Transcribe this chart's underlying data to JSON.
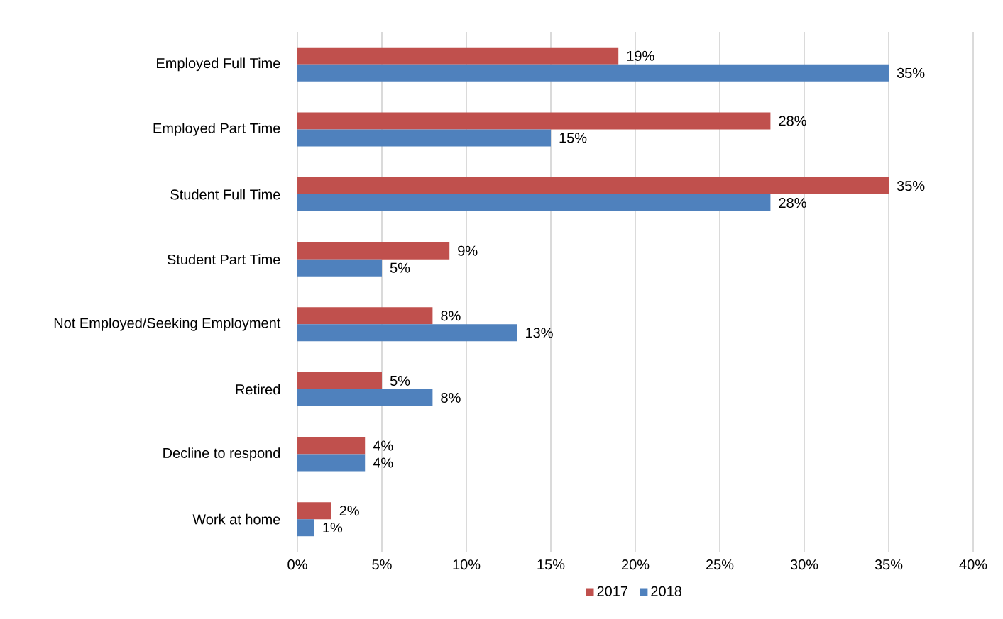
{
  "chart_data": {
    "type": "bar",
    "orientation": "horizontal",
    "categories": [
      "Employed Full Time",
      "Employed Part Time",
      "Student Full Time",
      "Student Part Time",
      "Not Employed/Seeking Employment",
      "Retired",
      "Decline to respond",
      "Work at home"
    ],
    "series": [
      {
        "name": "2017",
        "color": "#c0504d",
        "values": [
          19,
          28,
          35,
          9,
          8,
          5,
          4,
          2
        ],
        "value_labels": [
          "19%",
          "28%",
          "35%",
          "9%",
          "8%",
          "5%",
          "4%",
          "2%"
        ]
      },
      {
        "name": "2018",
        "color": "#4f81bd",
        "values": [
          35,
          15,
          28,
          5,
          13,
          8,
          4,
          1
        ],
        "value_labels": [
          "35%",
          "15%",
          "28%",
          "5%",
          "13%",
          "8%",
          "4%",
          "1%"
        ]
      }
    ],
    "xlim": [
      0,
      40
    ],
    "xticks": [
      {
        "value": 0,
        "label": "0%"
      },
      {
        "value": 5,
        "label": "5%"
      },
      {
        "value": 10,
        "label": "10%"
      },
      {
        "value": 15,
        "label": "15%"
      },
      {
        "value": 20,
        "label": "20%"
      },
      {
        "value": 25,
        "label": "25%"
      },
      {
        "value": 30,
        "label": "30%"
      },
      {
        "value": 35,
        "label": "35%"
      },
      {
        "value": 40,
        "label": "40%"
      }
    ],
    "grid": "x",
    "legend": "bottom"
  }
}
